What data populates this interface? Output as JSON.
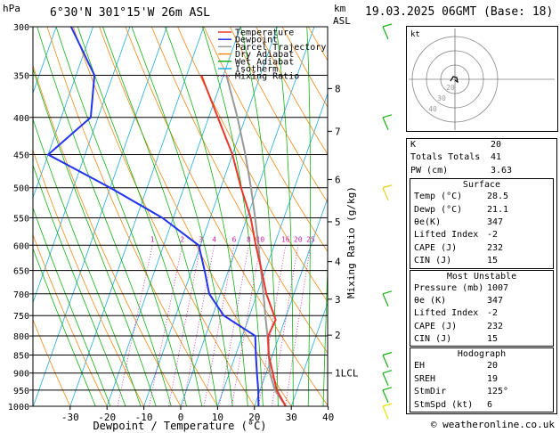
{
  "header": {
    "location": "6°30'N  301°15'W  26m  ASL",
    "datetime": "19.03.2025  06GMT  (Base: 18)",
    "hpa_label": "hPa",
    "km_label": "km",
    "asl_label": "ASL"
  },
  "chart_data": {
    "type": "skew-t",
    "xlabel": "Dewpoint / Temperature (°C)",
    "right_axis_label": "Mixing Ratio (g/kg)",
    "temp_ticks": [
      -30,
      -20,
      -10,
      0,
      10,
      20,
      30,
      40
    ],
    "pressure_ticks": [
      300,
      350,
      400,
      450,
      500,
      550,
      600,
      650,
      700,
      750,
      800,
      850,
      900,
      950,
      1000
    ],
    "km_ticks": [
      {
        "label": "8",
        "p": 365
      },
      {
        "label": "7",
        "p": 418
      },
      {
        "label": "6",
        "p": 487
      },
      {
        "label": "5",
        "p": 557
      },
      {
        "label": "4",
        "p": 632
      },
      {
        "label": "3",
        "p": 712
      },
      {
        "label": "2",
        "p": 798
      },
      {
        "label": "1LCL",
        "p": 900
      }
    ],
    "mixing_ratio_labels": [
      "1",
      "2",
      "3",
      "4",
      "6",
      "8",
      "10",
      "16",
      "20",
      "25"
    ],
    "mixing_ratio_values": [
      1,
      2,
      3,
      4,
      6,
      8,
      10,
      16,
      20,
      25
    ],
    "legend": [
      {
        "name": "Temperature",
        "color": "#e8382a"
      },
      {
        "name": "Dewpoint",
        "color": "#2233ee"
      },
      {
        "name": "Parcel Trajectory",
        "color": "#999999"
      },
      {
        "name": "Dry Adiabat",
        "color": "#f08a1a"
      },
      {
        "name": "Wet Adiabat",
        "color": "#16b016"
      },
      {
        "name": "Isotherm",
        "color": "#22aadd"
      },
      {
        "name": "Mixing Ratio",
        "color": "#cc22aa"
      }
    ],
    "temperature": [
      {
        "p": 1000,
        "t": 28.5
      },
      {
        "p": 950,
        "t": 24.5
      },
      {
        "p": 900,
        "t": 21.8
      },
      {
        "p": 850,
        "t": 19.0
      },
      {
        "p": 800,
        "t": 17.0
      },
      {
        "p": 760,
        "t": 17.5
      },
      {
        "p": 700,
        "t": 12.5
      },
      {
        "p": 650,
        "t": 9.0
      },
      {
        "p": 600,
        "t": 5.0
      },
      {
        "p": 550,
        "t": 1.0
      },
      {
        "p": 500,
        "t": -4.5
      },
      {
        "p": 450,
        "t": -10.0
      },
      {
        "p": 400,
        "t": -17.5
      },
      {
        "p": 350,
        "t": -26.0
      }
    ],
    "dewpoint": [
      {
        "p": 1000,
        "t": 21.1
      },
      {
        "p": 950,
        "t": 19.5
      },
      {
        "p": 900,
        "t": 17.5
      },
      {
        "p": 850,
        "t": 15.5
      },
      {
        "p": 800,
        "t": 13.5
      },
      {
        "p": 750,
        "t": 3.0
      },
      {
        "p": 700,
        "t": -3.0
      },
      {
        "p": 650,
        "t": -6.5
      },
      {
        "p": 600,
        "t": -10.5
      },
      {
        "p": 550,
        "t": -23.0
      },
      {
        "p": 500,
        "t": -40.0
      },
      {
        "p": 450,
        "t": -60.0
      },
      {
        "p": 400,
        "t": -52.0
      },
      {
        "p": 350,
        "t": -55.0
      },
      {
        "p": 300,
        "t": -66.0
      }
    ],
    "parcel": [
      {
        "p": 1000,
        "t": 28.5
      },
      {
        "p": 950,
        "t": 24.0
      },
      {
        "p": 900,
        "t": 21.0
      },
      {
        "p": 850,
        "t": 19.0
      },
      {
        "p": 800,
        "t": 16.8
      },
      {
        "p": 750,
        "t": 14.3
      },
      {
        "p": 700,
        "t": 11.7
      },
      {
        "p": 650,
        "t": 8.8
      },
      {
        "p": 600,
        "t": 5.7
      },
      {
        "p": 550,
        "t": 2.2
      },
      {
        "p": 500,
        "t": -1.8
      },
      {
        "p": 450,
        "t": -6.5
      },
      {
        "p": 400,
        "t": -12.2
      },
      {
        "p": 350,
        "t": -19.2
      }
    ],
    "wind_barbs": [
      {
        "p": 1000,
        "color": "#e8e800"
      },
      {
        "p": 950,
        "color": "#16b016"
      },
      {
        "p": 900,
        "color": "#16b016"
      },
      {
        "p": 850,
        "color": "#16b016"
      },
      {
        "p": 700,
        "color": "#16b016"
      },
      {
        "p": 500,
        "color": "#e8d020"
      },
      {
        "p": 400,
        "color": "#16b016"
      },
      {
        "p": 300,
        "color": "#16b016"
      }
    ]
  },
  "hodograph": {
    "title": "kt",
    "ring_labels": [
      "20",
      "30",
      "40"
    ]
  },
  "indices": {
    "general": [
      {
        "label": "K",
        "value": "20"
      },
      {
        "label": "Totals Totals",
        "value": "41"
      },
      {
        "label": "PW (cm)",
        "value": "3.63"
      }
    ],
    "surface_title": "Surface",
    "surface": [
      {
        "label": "Temp (°C)",
        "value": "28.5"
      },
      {
        "label": "Dewp (°C)",
        "value": "21.1"
      },
      {
        "label": "θe(K)",
        "value": "347"
      },
      {
        "label": "Lifted Index",
        "value": "-2"
      },
      {
        "label": "CAPE (J)",
        "value": "232"
      },
      {
        "label": "CIN (J)",
        "value": "15"
      }
    ],
    "unstable_title": "Most Unstable",
    "unstable": [
      {
        "label": "Pressure (mb)",
        "value": "1007"
      },
      {
        "label": "θe (K)",
        "value": "347"
      },
      {
        "label": "Lifted Index",
        "value": "-2"
      },
      {
        "label": "CAPE (J)",
        "value": "232"
      },
      {
        "label": "CIN (J)",
        "value": "15"
      }
    ],
    "hodo_title": "Hodograph",
    "hodo": [
      {
        "label": "EH",
        "value": "20"
      },
      {
        "label": "SREH",
        "value": "19"
      },
      {
        "label": "StmDir",
        "value": "125°"
      },
      {
        "label": "StmSpd (kt)",
        "value": "6"
      }
    ]
  },
  "footer": "© weatheronline.co.uk"
}
